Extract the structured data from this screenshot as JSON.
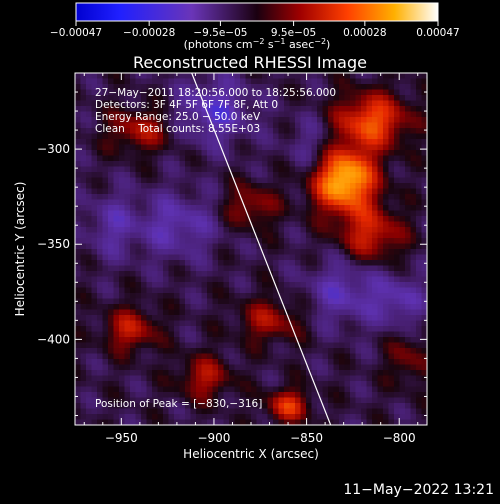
{
  "chart_data": {
    "type": "heatmap",
    "title": "Reconstructed RHESSI Image",
    "xlabel": "Heliocentric X (arcsec)",
    "ylabel": "Heliocentric Y (arcsec)",
    "xlim": [
      -975,
      -785
    ],
    "ylim": [
      -445,
      -260
    ],
    "x_ticks": [
      -950,
      -900,
      -850,
      -800
    ],
    "x_tick_labels": [
      "−950",
      "−900",
      "−850",
      "−800"
    ],
    "y_ticks": [
      -300,
      -350,
      -400
    ],
    "y_tick_labels": [
      "−300",
      "−350",
      "−400"
    ],
    "colorbar": {
      "min": -0.00047,
      "max": 0.00047,
      "ticks": [
        -0.00047,
        -0.00028,
        -9.5e-05,
        9.5e-05,
        0.00028,
        0.00047
      ],
      "tick_labels": [
        "−0.00047",
        "−0.00028",
        "−9.5e−05",
        "9.5e−05",
        "0.00028",
        "0.00047"
      ],
      "label_pre": "(photons cm",
      "label_sup1": "−2",
      "label_mid1": " s",
      "label_sup2": "−1",
      "label_mid2": " asec",
      "label_sup3": "−2",
      "label_post": ")"
    },
    "annotations": [
      "27−May−2011 18:20:56.000 to 18:25:56.000",
      "Detectors: 3F 4F 5F 6F 7F 8F, Att 0",
      "Energy Range: 25.0 − 50.0 keV",
      "Clean    Total counts: 8.55E+03"
    ],
    "peak_label": "Position of Peak = [−830,−316]",
    "limb_line": {
      "x": [
        -912,
        -837
      ],
      "y": [
        -260,
        -445
      ]
    },
    "sources": [
      {
        "x": -830,
        "y": -316,
        "value": 0.00047,
        "sx": 12,
        "sy": 12
      },
      {
        "x": -815,
        "y": -285,
        "value": 0.0003,
        "sx": 14,
        "sy": 10
      },
      {
        "x": -815,
        "y": -345,
        "value": 0.00022,
        "sx": 12,
        "sy": 10
      },
      {
        "x": -940,
        "y": -290,
        "value": 0.00018,
        "sx": 12,
        "sy": 8
      },
      {
        "x": -945,
        "y": -395,
        "value": 0.0002,
        "sx": 10,
        "sy": 8
      },
      {
        "x": -880,
        "y": -330,
        "value": 0.00016,
        "sx": 10,
        "sy": 8
      },
      {
        "x": -870,
        "y": -390,
        "value": 0.00017,
        "sx": 12,
        "sy": 8
      },
      {
        "x": -905,
        "y": -420,
        "value": 0.00018,
        "sx": 10,
        "sy": 8
      },
      {
        "x": -860,
        "y": -435,
        "value": 0.00025,
        "sx": 8,
        "sy": 6
      },
      {
        "x": -795,
        "y": -410,
        "value": 0.00012,
        "sx": 8,
        "sy": 10
      },
      {
        "x": -920,
        "y": -340,
        "value": -0.00015,
        "sx": 15,
        "sy": 12
      },
      {
        "x": -900,
        "y": -280,
        "value": -0.00018,
        "sx": 14,
        "sy": 12
      },
      {
        "x": -830,
        "y": -375,
        "value": -0.00015,
        "sx": 14,
        "sy": 12
      },
      {
        "x": -800,
        "y": -380,
        "value": -0.00014,
        "sx": 10,
        "sy": 10
      },
      {
        "x": -955,
        "y": -340,
        "value": -0.00012,
        "sx": 10,
        "sy": 12
      },
      {
        "x": -845,
        "y": -300,
        "value": -0.00012,
        "sx": 10,
        "sy": 12
      }
    ]
  },
  "footer": {
    "date": "11−May−2022 13:21"
  }
}
